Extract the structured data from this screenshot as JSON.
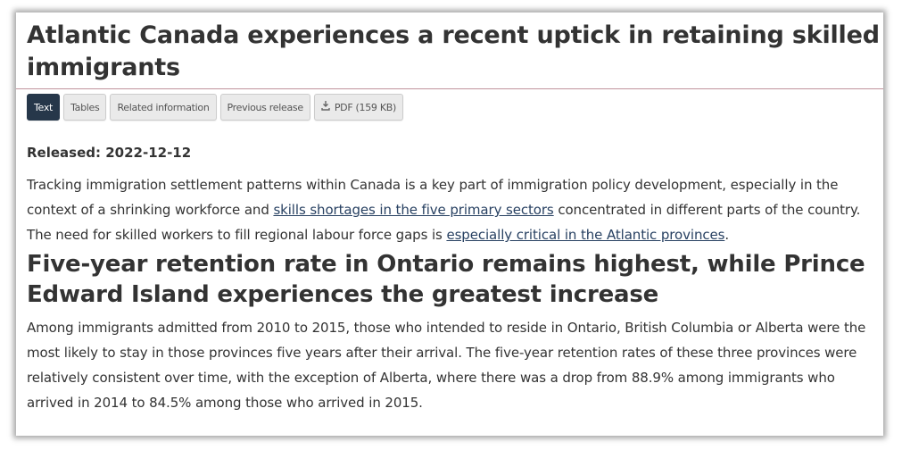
{
  "article": {
    "title": "Atlantic Canada experiences a recent uptick in retaining skilled immigrants",
    "tabs": [
      {
        "label": "Text",
        "active": true
      },
      {
        "label": "Tables",
        "active": false
      },
      {
        "label": "Related information",
        "active": false
      },
      {
        "label": "Previous release",
        "active": false
      },
      {
        "label": "PDF (159 KB)",
        "active": false,
        "icon": "download-icon"
      }
    ],
    "released": "Released: 2022-12-12",
    "intro": {
      "part1": "Tracking immigration settlement patterns within Canada is a key part of immigration policy development, especially in the context of a shrinking workforce and ",
      "link1": "skills shortages in the five primary sectors",
      "part2": " concentrated in different parts of the country. The need for skilled workers to fill regional labour force gaps is ",
      "link2": "especially critical in the Atlantic provinces",
      "part3": "."
    },
    "section_heading": "Five-year retention rate in Ontario remains highest, while Prince Edward Island experiences the greatest increase",
    "section_text": "Among immigrants admitted from 2010 to 2015, those who intended to reside in Ontario, British Columbia or Alberta were the most likely to stay in those provinces five years after their arrival. The five-year retention rates of these three provinces were relatively consistent over time, with the exception of Alberta, where there was a drop from 88.9% among immigrants who arrived in 2014 to 84.5% among those who arrived in 2015."
  },
  "colors": {
    "active_tab": "#26374a",
    "link": "#284162",
    "rule": "#c0939c"
  }
}
